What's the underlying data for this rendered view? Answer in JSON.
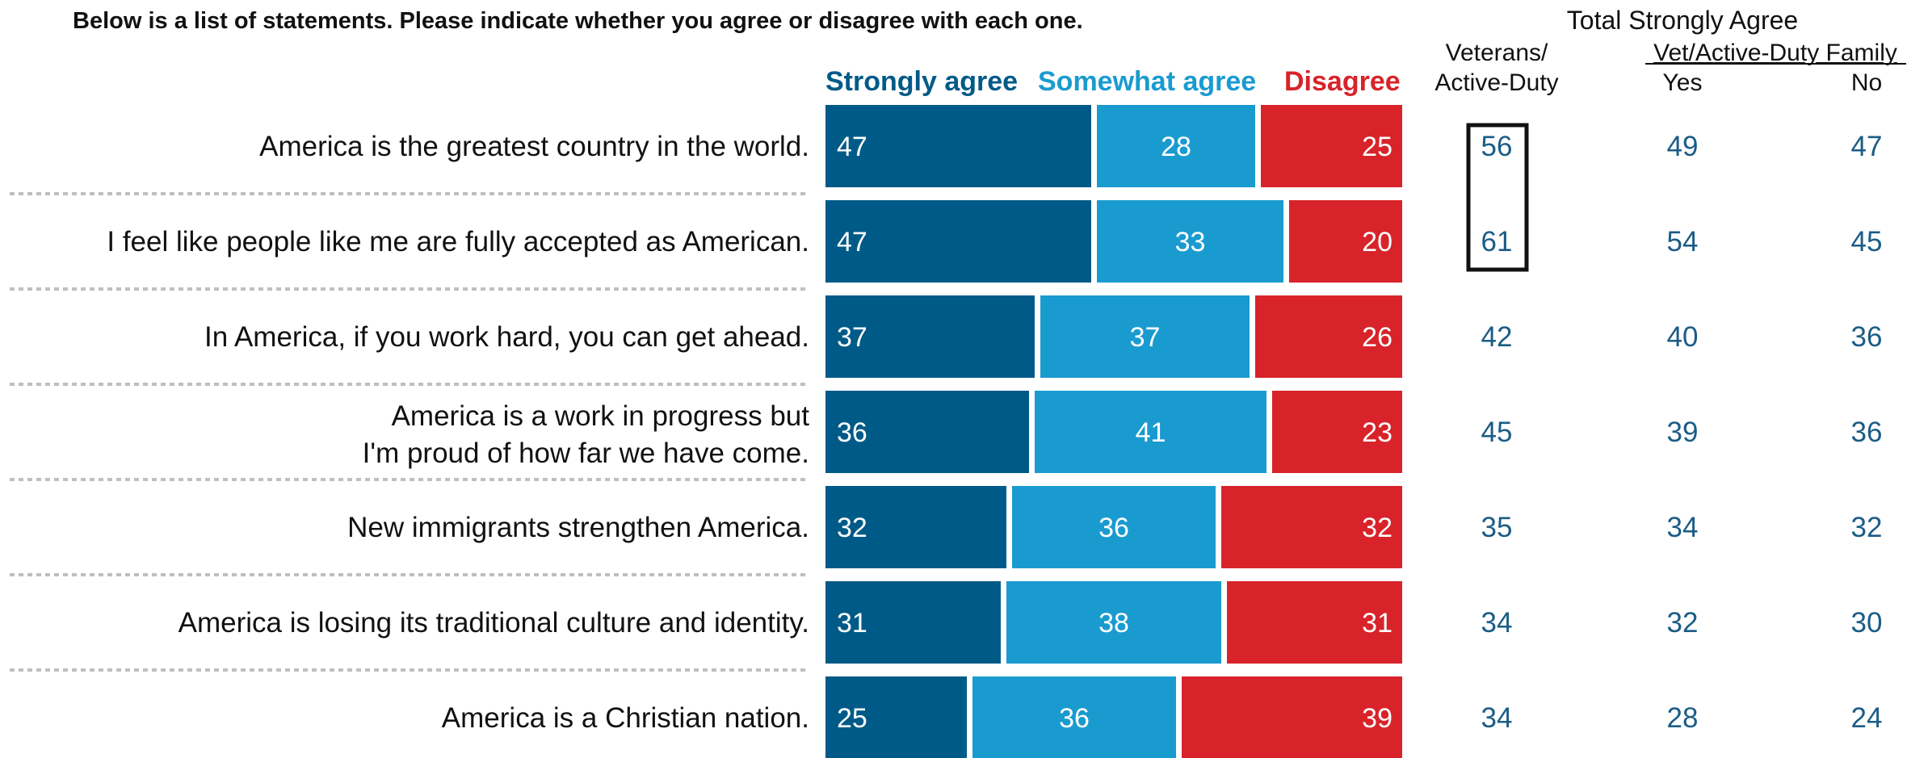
{
  "title": "Below is a list of statements. Please indicate whether you agree or disagree with each one.",
  "colors": {
    "strongly": "#005A87",
    "somewhat": "#1A9BD0",
    "disagree": "#D8232A",
    "text": "#111111",
    "number": "#1B5C86",
    "divider": "#BFBFBF",
    "box": "#111111"
  },
  "chart_data": {
    "type": "bar",
    "orientation": "horizontal",
    "stacked": true,
    "xlim": [
      0,
      100
    ],
    "legend_position": "top",
    "categories": [
      [
        "America is the greatest country in the world."
      ],
      [
        "I feel like people like me are fully accepted as American."
      ],
      [
        "In America, if you work hard, you can get ahead."
      ],
      [
        "America is a work in progress but",
        "I'm proud of how far we have come."
      ],
      [
        "New immigrants strengthen America."
      ],
      [
        "America is losing its traditional culture and identity."
      ],
      [
        "America is a Christian nation."
      ]
    ],
    "series": [
      {
        "name": "Strongly agree",
        "color_key": "strongly",
        "values": [
          47,
          47,
          37,
          36,
          32,
          31,
          25
        ]
      },
      {
        "name": "Somewhat agree",
        "color_key": "somewhat",
        "values": [
          28,
          33,
          37,
          41,
          36,
          38,
          36
        ]
      },
      {
        "name": "Disagree",
        "color_key": "disagree",
        "values": [
          25,
          20,
          26,
          23,
          32,
          31,
          39
        ]
      }
    ],
    "table": {
      "group_header": "Total Strongly Agree",
      "subgroup_header": "Vet/Active-Duty Family",
      "columns": [
        {
          "header": [
            "Veterans/",
            "Active-Duty"
          ],
          "values": [
            56,
            61,
            42,
            45,
            35,
            34,
            34
          ],
          "boxed_rows": [
            0,
            1
          ]
        },
        {
          "header": [
            "Yes"
          ],
          "values": [
            49,
            54,
            40,
            39,
            34,
            32,
            28
          ]
        },
        {
          "header": [
            "No"
          ],
          "values": [
            47,
            45,
            36,
            36,
            32,
            30,
            24
          ]
        }
      ]
    }
  }
}
